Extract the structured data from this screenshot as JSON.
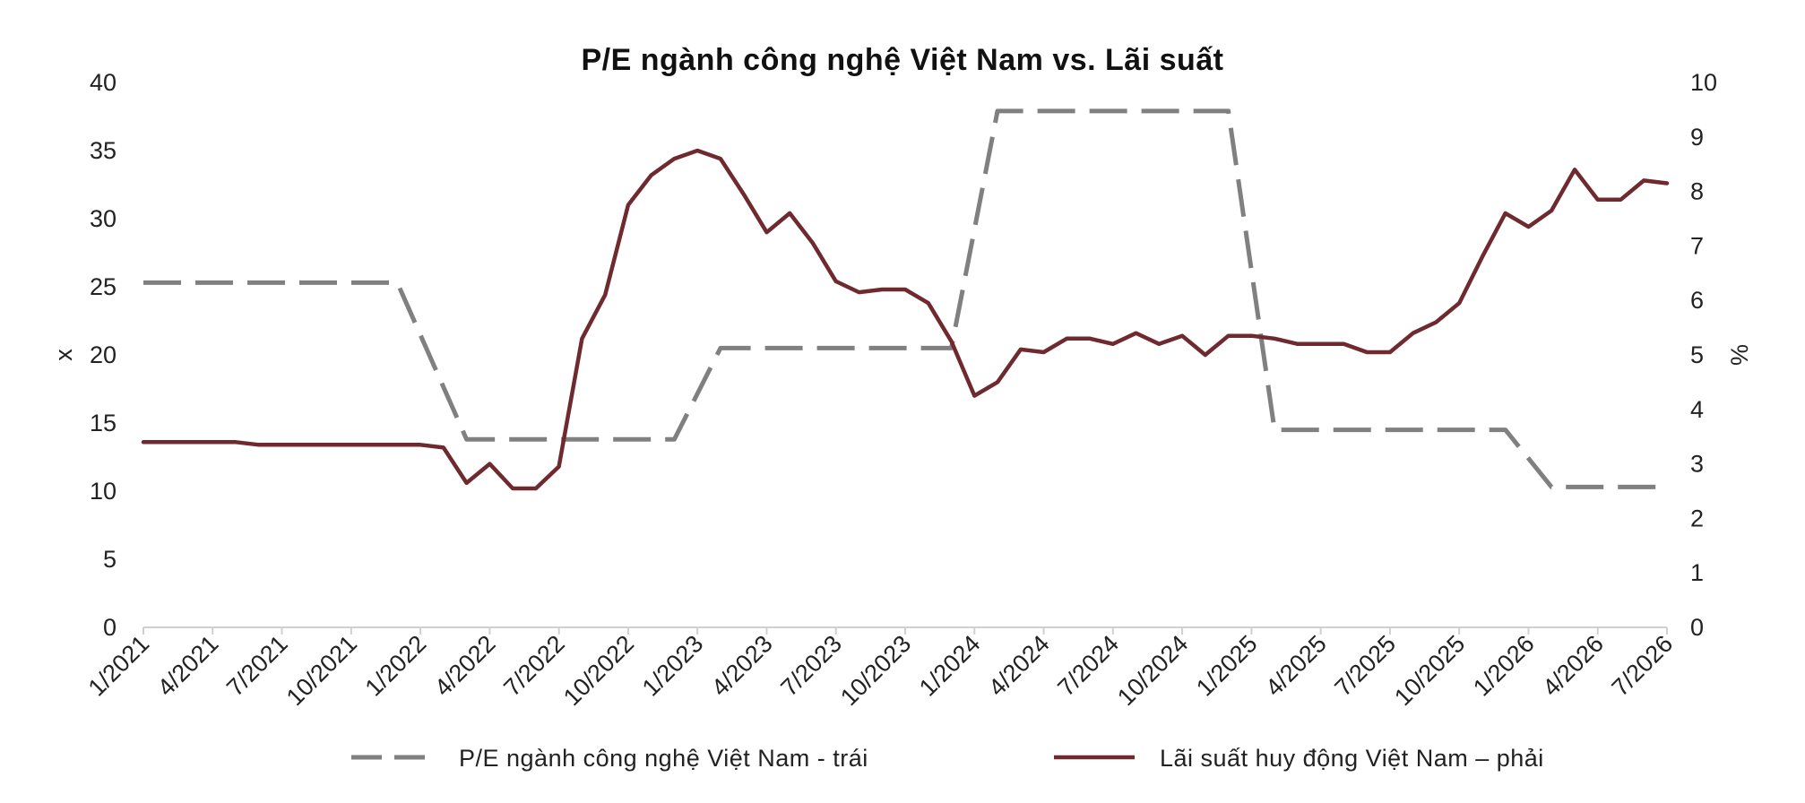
{
  "chart_data": {
    "type": "line",
    "title": "P/E ngành công nghệ Việt Nam vs. Lãi suất",
    "ylabel_left": "x",
    "ylabel_right": "%",
    "ylim_left": [
      0,
      40
    ],
    "ylim_right": [
      0,
      10
    ],
    "yticks_left": [
      "0",
      "5",
      "10",
      "15",
      "20",
      "25",
      "30",
      "35",
      "40"
    ],
    "yticks_right": [
      "0",
      "1",
      "2",
      "3",
      "4",
      "5",
      "6",
      "7",
      "8",
      "9",
      "10"
    ],
    "x_tick_labels": [
      "1/2021",
      "4/2021",
      "7/2021",
      "10/2021",
      "1/2022",
      "4/2022",
      "7/2022",
      "10/2022",
      "1/2023",
      "4/2023",
      "7/2023",
      "10/2023",
      "1/2024",
      "4/2024",
      "7/2024",
      "10/2024",
      "1/2025",
      "4/2025",
      "7/2025",
      "10/2025",
      "1/2026",
      "4/2026",
      "7/2026"
    ],
    "grid": false,
    "legend_position": "bottom",
    "series": [
      {
        "name": "P/E ngành công nghệ Việt Nam - trái",
        "axis": "left",
        "style": "dashed",
        "color": "#808080",
        "points": [
          [
            "1/2021",
            25.3
          ],
          [
            "12/2021",
            25.3
          ],
          [
            "3/2022",
            13.8
          ],
          [
            "12/2022",
            13.8
          ],
          [
            "2/2023",
            20.5
          ],
          [
            "12/2023",
            20.5
          ],
          [
            "2/2024",
            37.9
          ],
          [
            "12/2024",
            37.9
          ],
          [
            "2/2025",
            14.5
          ],
          [
            "12/2025",
            14.5
          ],
          [
            "2/2026",
            10.3
          ],
          [
            "7/2026",
            10.3
          ]
        ]
      },
      {
        "name": "Lãi suất huy động Việt Nam – phải",
        "axis": "right",
        "style": "solid",
        "color": "#6e2a2e",
        "points": [
          [
            "1/2021",
            3.4
          ],
          [
            "2/2021",
            3.4
          ],
          [
            "3/2021",
            3.4
          ],
          [
            "4/2021",
            3.4
          ],
          [
            "5/2021",
            3.4
          ],
          [
            "6/2021",
            3.35
          ],
          [
            "7/2021",
            3.35
          ],
          [
            "8/2021",
            3.35
          ],
          [
            "9/2021",
            3.35
          ],
          [
            "10/2021",
            3.35
          ],
          [
            "11/2021",
            3.35
          ],
          [
            "12/2021",
            3.35
          ],
          [
            "1/2022",
            3.35
          ],
          [
            "2/2022",
            3.3
          ],
          [
            "3/2022",
            2.65
          ],
          [
            "4/2022",
            3.0
          ],
          [
            "5/2022",
            2.55
          ],
          [
            "6/2022",
            2.55
          ],
          [
            "7/2022",
            2.95
          ],
          [
            "8/2022",
            5.3
          ],
          [
            "9/2022",
            6.1
          ],
          [
            "10/2022",
            7.75
          ],
          [
            "11/2022",
            8.3
          ],
          [
            "12/2022",
            8.6
          ],
          [
            "1/2023",
            8.75
          ],
          [
            "2/2023",
            8.6
          ],
          [
            "3/2023",
            7.95
          ],
          [
            "4/2023",
            7.25
          ],
          [
            "5/2023",
            7.6
          ],
          [
            "6/2023",
            7.05
          ],
          [
            "7/2023",
            6.35
          ],
          [
            "8/2023",
            6.15
          ],
          [
            "9/2023",
            6.2
          ],
          [
            "10/2023",
            6.2
          ],
          [
            "11/2023",
            5.95
          ],
          [
            "12/2023",
            5.25
          ],
          [
            "1/2024",
            4.25
          ],
          [
            "2/2024",
            4.5
          ],
          [
            "3/2024",
            5.1
          ],
          [
            "4/2024",
            5.05
          ],
          [
            "5/2024",
            5.3
          ],
          [
            "6/2024",
            5.3
          ],
          [
            "7/2024",
            5.2
          ],
          [
            "8/2024",
            5.4
          ],
          [
            "9/2024",
            5.2
          ],
          [
            "10/2024",
            5.35
          ],
          [
            "11/2024",
            5.0
          ],
          [
            "12/2024",
            5.35
          ],
          [
            "1/2025",
            5.35
          ],
          [
            "2/2025",
            5.3
          ],
          [
            "3/2025",
            5.2
          ],
          [
            "4/2025",
            5.2
          ],
          [
            "5/2025",
            5.2
          ],
          [
            "6/2025",
            5.05
          ],
          [
            "7/2025",
            5.05
          ],
          [
            "8/2025",
            5.4
          ],
          [
            "9/2025",
            5.6
          ],
          [
            "10/2025",
            5.95
          ],
          [
            "11/2025",
            6.8
          ],
          [
            "12/2025",
            7.6
          ],
          [
            "1/2026",
            7.35
          ],
          [
            "2/2026",
            7.65
          ],
          [
            "3/2026",
            8.4
          ],
          [
            "4/2026",
            7.85
          ],
          [
            "5/2026",
            7.85
          ],
          [
            "6/2026",
            8.2
          ],
          [
            "7/2026",
            8.15
          ]
        ]
      }
    ]
  }
}
